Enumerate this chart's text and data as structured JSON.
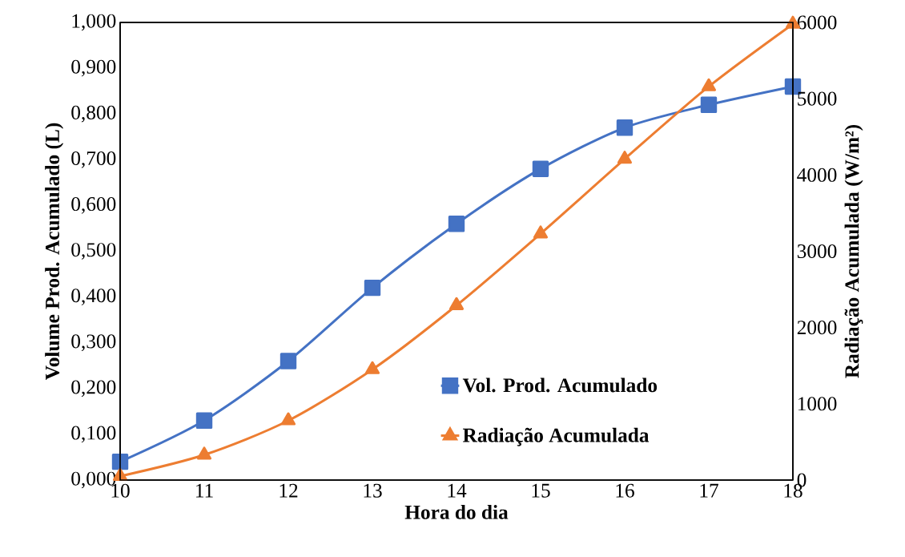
{
  "chart_data": {
    "type": "line",
    "xlabel": "Hora do dia",
    "ylabel": "Volume Prod. Acumulado (L)",
    "y2label": "Radiação Acumulada (W/m²)",
    "x": [
      10,
      11,
      12,
      13,
      14,
      15,
      16,
      17,
      18
    ],
    "series": [
      {
        "name": "Vol. Prod. Acumulado",
        "color": "#4472c4",
        "marker": "square",
        "axis": "y",
        "values": [
          0.04,
          0.13,
          0.26,
          0.42,
          0.56,
          0.68,
          0.77,
          0.82,
          0.86
        ]
      },
      {
        "name": "Radiação Acumulada",
        "color": "#ed7d31",
        "marker": "triangle",
        "axis": "y2",
        "values": [
          50,
          330,
          780,
          1450,
          2290,
          3230,
          4210,
          5160,
          5980
        ]
      }
    ],
    "xlim": [
      10,
      18
    ],
    "xticks": [
      10,
      11,
      12,
      13,
      14,
      15,
      16,
      17,
      18
    ],
    "ylim": [
      0,
      1
    ],
    "yticks": [
      {
        "value": 0,
        "label": "0,000"
      },
      {
        "value": 0.1,
        "label": "0,100"
      },
      {
        "value": 0.2,
        "label": "0,200"
      },
      {
        "value": 0.3,
        "label": "0,300"
      },
      {
        "value": 0.4,
        "label": "0,400"
      },
      {
        "value": 0.5,
        "label": "0,500"
      },
      {
        "value": 0.6,
        "label": "0,600"
      },
      {
        "value": 0.7,
        "label": "0,700"
      },
      {
        "value": 0.8,
        "label": "0,800"
      },
      {
        "value": 0.9,
        "label": "0,900"
      },
      {
        "value": 1,
        "label": "1,000"
      }
    ],
    "y2lim": [
      0,
      6000
    ],
    "y2ticks": [
      0,
      1000,
      2000,
      3000,
      4000,
      5000,
      6000
    ],
    "legend": "bottom right",
    "grid": false,
    "line_style": "solid"
  }
}
